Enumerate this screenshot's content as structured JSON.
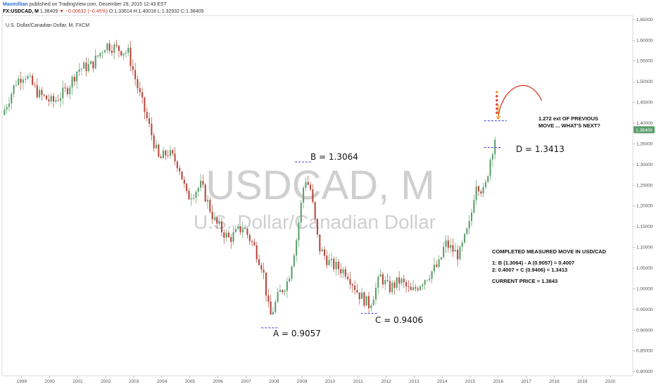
{
  "header": {
    "author": "Maxmillian",
    "published": "published on TradingView.com, December 29, 2015 12:43 EST",
    "symbol": "FX:USDCAD, M",
    "last": "1.38409",
    "change": "−0.00632 (−0.45%)",
    "open": "O:1.33614",
    "high": "H:1.40018",
    "low": "L:1.32932",
    "close": "C:1.38409"
  },
  "instrument_label": "U.S. Dollar/Canadian Dollar, M, FXCM",
  "watermark": {
    "symbol": "USDCAD, M",
    "name": "U.S. Dollar/Canadian Dollar"
  },
  "annotations": {
    "a": "A = 0.9057",
    "b": "B = 1.3064",
    "c": "C = 0.9406",
    "d": "D = 1.3413",
    "ext_line1": "1.272 ext OF PREVIOUS",
    "ext_line2": "MOVE ... WHAT'S NEXT?",
    "summary_title": "COMPLETED MEASURED MOVE IN USD/CAD",
    "calc1": "1: B (1.3064) - A (0.9057) = 0.4007",
    "calc2": "2: 0.4007 + C (0.9406) = 1.3413",
    "current": "CURRENT PRICE = 1.3843"
  },
  "price_badge": "1.38409",
  "colors": {
    "up": "#5a9e6a",
    "down": "#b5463a",
    "level_line": "#3a3fd6",
    "arrow": "#d92a1a",
    "badge": "#5a9e6a",
    "dot_red": "#e4483c",
    "dot_orange": "#f29b2a",
    "dot_yellow": "#f0d02a",
    "dot_green": "#6cc24a"
  },
  "chart_data": {
    "type": "candlestick",
    "timeframe": "monthly",
    "x_ticks": [
      "1999",
      "2000",
      "2001",
      "2002",
      "2003",
      "2004",
      "2005",
      "2006",
      "2007",
      "2008",
      "2009",
      "2010",
      "2011",
      "2012",
      "2013",
      "2014",
      "2015",
      "2016",
      "2017",
      "2018",
      "2019",
      "2020"
    ],
    "y_ticks": [
      "1.65000",
      "1.60000",
      "1.55000",
      "1.50000",
      "1.45000",
      "1.40000",
      "1.35000",
      "1.30000",
      "1.25000",
      "1.20000",
      "1.15000",
      "1.10000",
      "1.05000",
      "1.00000",
      "0.95000",
      "0.90000",
      "0.85000",
      "0.80000"
    ],
    "ylim": [
      0.79,
      1.66
    ],
    "xlim": [
      1998.3,
      2020.8
    ],
    "anchors": [
      {
        "t": 1998.3,
        "p": 1.42
      },
      {
        "t": 1998.8,
        "p": 1.5
      },
      {
        "t": 1999.1,
        "p": 1.52
      },
      {
        "t": 1999.6,
        "p": 1.47
      },
      {
        "t": 2000.1,
        "p": 1.45
      },
      {
        "t": 2000.6,
        "p": 1.48
      },
      {
        "t": 2001.0,
        "p": 1.53
      },
      {
        "t": 2001.5,
        "p": 1.54
      },
      {
        "t": 2002.0,
        "p": 1.59
      },
      {
        "t": 2002.4,
        "p": 1.58
      },
      {
        "t": 2002.8,
        "p": 1.57
      },
      {
        "t": 2003.2,
        "p": 1.47
      },
      {
        "t": 2003.6,
        "p": 1.38
      },
      {
        "t": 2003.9,
        "p": 1.31
      },
      {
        "t": 2004.2,
        "p": 1.33
      },
      {
        "t": 2004.6,
        "p": 1.3
      },
      {
        "t": 2004.9,
        "p": 1.22
      },
      {
        "t": 2005.4,
        "p": 1.25
      },
      {
        "t": 2005.9,
        "p": 1.16
      },
      {
        "t": 2006.4,
        "p": 1.12
      },
      {
        "t": 2006.9,
        "p": 1.15
      },
      {
        "t": 2007.3,
        "p": 1.1
      },
      {
        "t": 2007.6,
        "p": 1.05
      },
      {
        "t": 2007.85,
        "p": 0.93
      },
      {
        "t": 2008.2,
        "p": 0.99
      },
      {
        "t": 2008.5,
        "p": 1.02
      },
      {
        "t": 2008.8,
        "p": 1.12
      },
      {
        "t": 2009.1,
        "p": 1.27
      },
      {
        "t": 2009.3,
        "p": 1.24
      },
      {
        "t": 2009.6,
        "p": 1.1
      },
      {
        "t": 2010.0,
        "p": 1.06
      },
      {
        "t": 2010.6,
        "p": 1.04
      },
      {
        "t": 2011.0,
        "p": 0.99
      },
      {
        "t": 2011.4,
        "p": 0.96
      },
      {
        "t": 2011.8,
        "p": 1.03
      },
      {
        "t": 2012.1,
        "p": 1.0
      },
      {
        "t": 2012.5,
        "p": 1.02
      },
      {
        "t": 2012.9,
        "p": 0.99
      },
      {
        "t": 2013.3,
        "p": 1.02
      },
      {
        "t": 2013.9,
        "p": 1.06
      },
      {
        "t": 2014.1,
        "p": 1.11
      },
      {
        "t": 2014.6,
        "p": 1.08
      },
      {
        "t": 2015.0,
        "p": 1.16
      },
      {
        "t": 2015.2,
        "p": 1.26
      },
      {
        "t": 2015.5,
        "p": 1.23
      },
      {
        "t": 2015.7,
        "p": 1.31
      },
      {
        "t": 2015.95,
        "p": 1.384
      }
    ],
    "levels": [
      {
        "label": "A",
        "value": 0.9057,
        "t": 2007.85
      },
      {
        "label": "B",
        "value": 1.3064,
        "t": 2009.05
      },
      {
        "label": "C",
        "value": 0.9406,
        "t": 2011.4
      },
      {
        "label": "D",
        "value": 1.3413,
        "t": 2015.8
      }
    ],
    "projection_dots": [
      {
        "p": 1.475,
        "c": "orange"
      },
      {
        "p": 1.465,
        "c": "red"
      },
      {
        "p": 1.455,
        "c": "red"
      },
      {
        "p": 1.445,
        "c": "red"
      },
      {
        "p": 1.435,
        "c": "red"
      },
      {
        "p": 1.425,
        "c": "red"
      }
    ],
    "current_price": 1.38409
  }
}
